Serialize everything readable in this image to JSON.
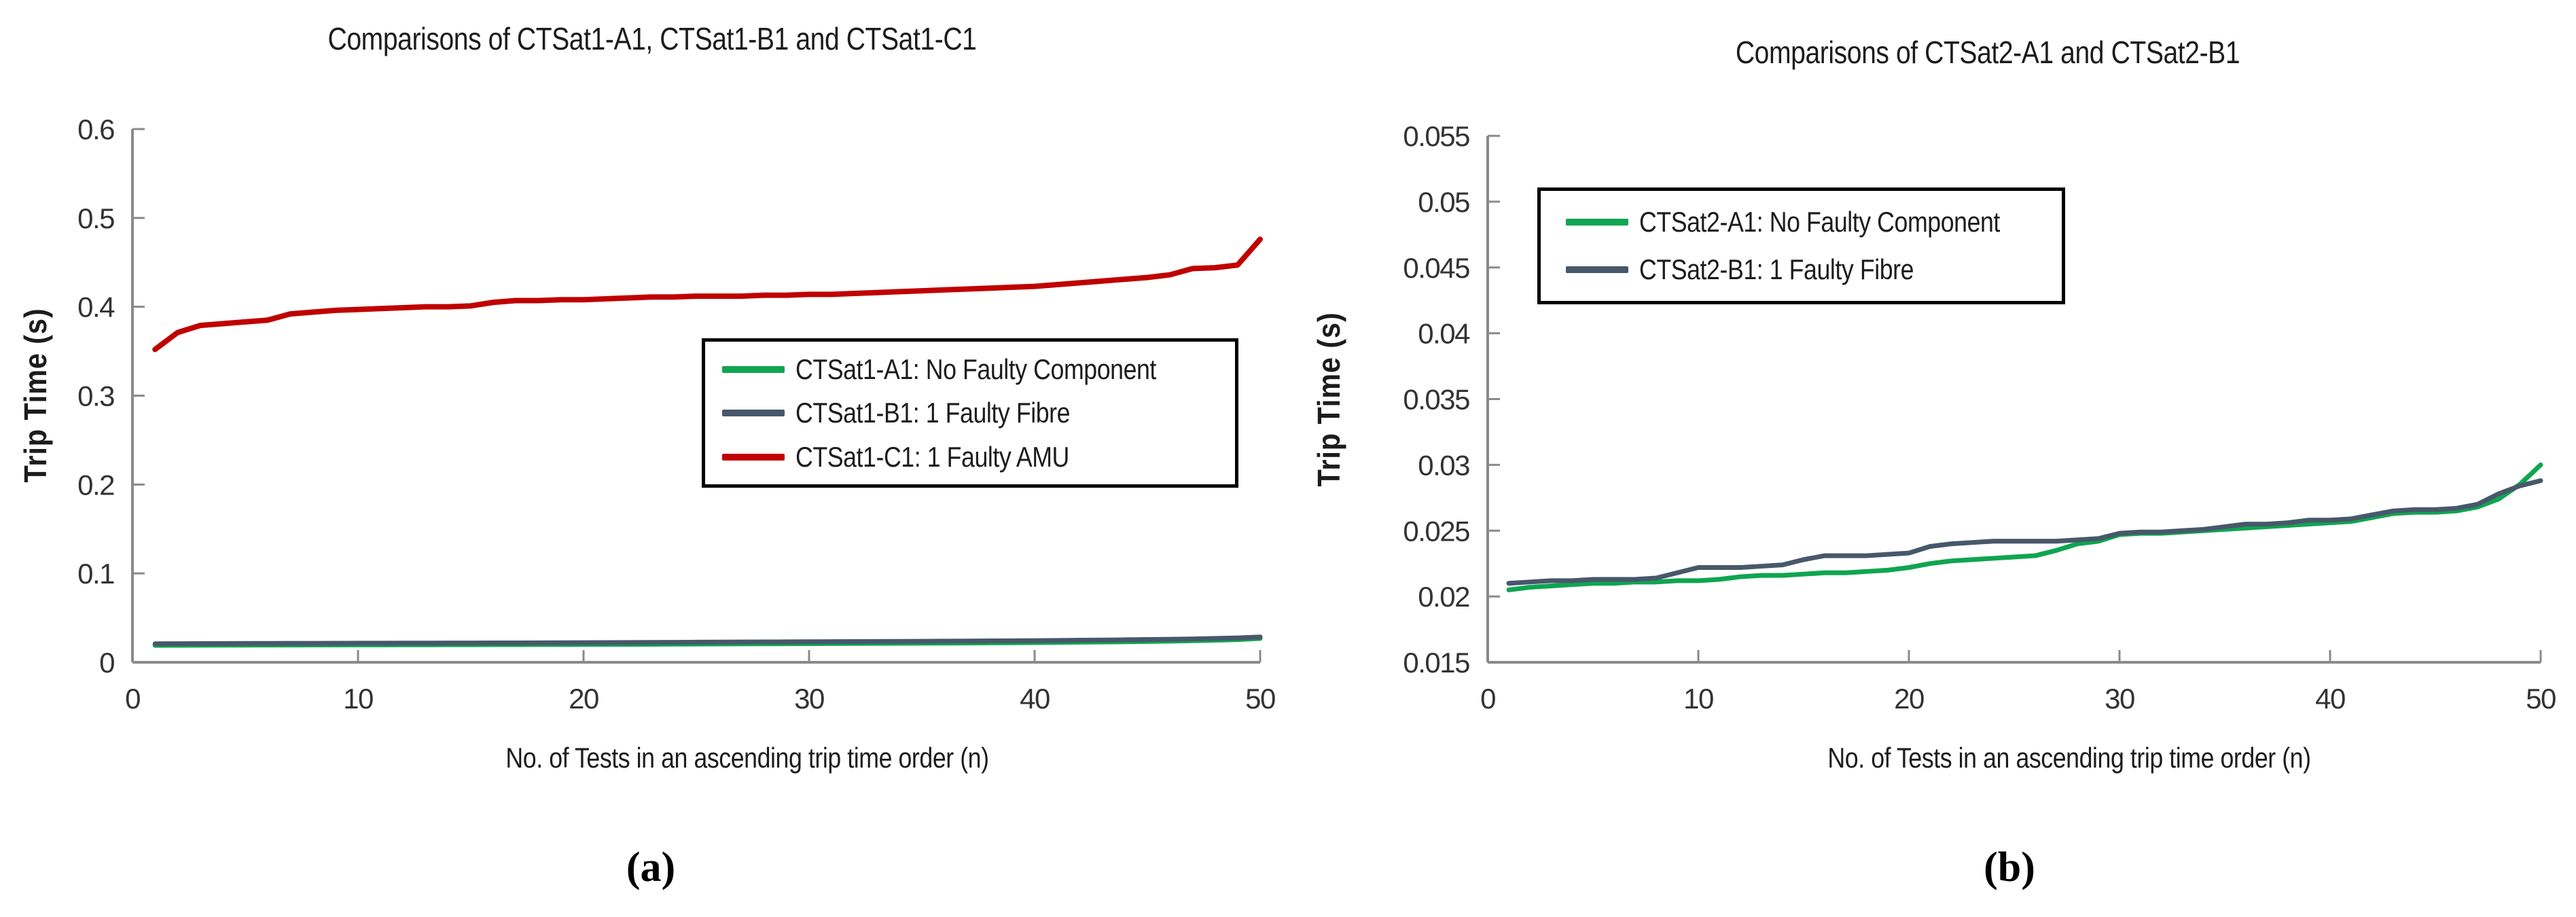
{
  "figure": {
    "background": "#ffffff",
    "axis_color": "#8a8a8a",
    "tick_text_color": "#333333",
    "captions": [
      "(a)",
      "(b)"
    ]
  },
  "chart_data": [
    {
      "type": "line",
      "title": "Comparisons of CTSat1-A1, CTSat1-B1 and CTSat1-C1",
      "xlabel": "No. of Tests in an ascending trip time order (n)",
      "ylabel": "Trip Time (s)",
      "caption": "(a)",
      "xlim": [
        0,
        50
      ],
      "ylim": [
        0,
        0.6
      ],
      "x_ticks": [
        0,
        10,
        20,
        30,
        40,
        50
      ],
      "x_tick_labels": [
        "0",
        "10",
        "20",
        "30",
        "40",
        "50"
      ],
      "y_ticks": [
        0,
        0.1,
        0.2,
        0.3,
        0.4,
        0.5,
        0.6
      ],
      "y_tick_labels": [
        "0",
        "0.1",
        "0.2",
        "0.3",
        "0.4",
        "0.5",
        "0.6"
      ],
      "grid": false,
      "legend_position": "inside center-right",
      "x": [
        1,
        2,
        3,
        4,
        5,
        6,
        7,
        8,
        9,
        10,
        11,
        12,
        13,
        14,
        15,
        16,
        17,
        18,
        19,
        20,
        21,
        22,
        23,
        24,
        25,
        26,
        27,
        28,
        29,
        30,
        31,
        32,
        33,
        34,
        35,
        36,
        37,
        38,
        39,
        40,
        41,
        42,
        43,
        44,
        45,
        46,
        47,
        48,
        49,
        50
      ],
      "series": [
        {
          "name": "CTSat1-A1: No Faulty Component",
          "color": "#0fa551",
          "values": [
            0.019,
            0.0191,
            0.0192,
            0.0193,
            0.0193,
            0.0194,
            0.0194,
            0.0195,
            0.0195,
            0.0196,
            0.0196,
            0.0197,
            0.0197,
            0.0198,
            0.0198,
            0.0199,
            0.0199,
            0.02,
            0.02,
            0.0201,
            0.0202,
            0.0202,
            0.0203,
            0.0204,
            0.0205,
            0.0206,
            0.0207,
            0.0208,
            0.0209,
            0.021,
            0.0211,
            0.0212,
            0.0213,
            0.0214,
            0.0215,
            0.0216,
            0.0217,
            0.0219,
            0.022,
            0.0222,
            0.0224,
            0.0226,
            0.0228,
            0.0231,
            0.0234,
            0.0238,
            0.0243,
            0.0248,
            0.0255,
            0.0268
          ]
        },
        {
          "name": "CTSat1-B1: 1 Faulty Fibre",
          "color": "#47586a",
          "values": [
            0.0208,
            0.0209,
            0.021,
            0.0211,
            0.0212,
            0.0212,
            0.0213,
            0.0213,
            0.0214,
            0.0215,
            0.0215,
            0.0216,
            0.0216,
            0.0217,
            0.0217,
            0.0218,
            0.0218,
            0.0219,
            0.022,
            0.0221,
            0.0222,
            0.0223,
            0.0224,
            0.0225,
            0.0226,
            0.0227,
            0.0228,
            0.0229,
            0.023,
            0.0231,
            0.0232,
            0.0233,
            0.0234,
            0.0235,
            0.0236,
            0.0238,
            0.0239,
            0.0241,
            0.0242,
            0.0244,
            0.0246,
            0.0248,
            0.025,
            0.0253,
            0.0256,
            0.0259,
            0.0263,
            0.0268,
            0.0274,
            0.0285
          ]
        },
        {
          "name": "CTSat1-C1: 1 Faulty AMU",
          "color": "#c00000",
          "values": [
            0.352,
            0.371,
            0.379,
            0.381,
            0.383,
            0.385,
            0.392,
            0.394,
            0.396,
            0.397,
            0.398,
            0.399,
            0.4,
            0.4,
            0.401,
            0.405,
            0.407,
            0.407,
            0.408,
            0.408,
            0.409,
            0.41,
            0.411,
            0.411,
            0.412,
            0.412,
            0.412,
            0.413,
            0.413,
            0.414,
            0.414,
            0.415,
            0.416,
            0.417,
            0.418,
            0.419,
            0.42,
            0.421,
            0.422,
            0.423,
            0.425,
            0.427,
            0.429,
            0.431,
            0.433,
            0.436,
            0.443,
            0.444,
            0.447,
            0.476
          ]
        }
      ]
    },
    {
      "type": "line",
      "title": "Comparisons of CTSat2-A1 and CTSat2-B1",
      "xlabel": "No. of Tests in an ascending trip time order (n)",
      "ylabel": "Trip Time (s)",
      "caption": "(b)",
      "xlim": [
        0,
        50
      ],
      "ylim": [
        0.015,
        0.055
      ],
      "x_ticks": [
        0,
        10,
        20,
        30,
        40,
        50
      ],
      "x_tick_labels": [
        "0",
        "10",
        "20",
        "30",
        "40",
        "50"
      ],
      "y_ticks": [
        0.015,
        0.02,
        0.025,
        0.03,
        0.035,
        0.04,
        0.045,
        0.05,
        0.055
      ],
      "y_tick_labels": [
        "0.015",
        "0.02",
        "0.025",
        "0.03",
        "0.035",
        "0.04",
        "0.045",
        "0.05",
        "0.055"
      ],
      "grid": false,
      "legend_position": "inside top-left",
      "x": [
        1,
        2,
        3,
        4,
        5,
        6,
        7,
        8,
        9,
        10,
        11,
        12,
        13,
        14,
        15,
        16,
        17,
        18,
        19,
        20,
        21,
        22,
        23,
        24,
        25,
        26,
        27,
        28,
        29,
        30,
        31,
        32,
        33,
        34,
        35,
        36,
        37,
        38,
        39,
        40,
        41,
        42,
        43,
        44,
        45,
        46,
        47,
        48,
        49,
        50
      ],
      "series": [
        {
          "name": "CTSat2-A1: No Faulty Component",
          "color": "#0fa551",
          "values": [
            0.0205,
            0.0207,
            0.0208,
            0.0209,
            0.021,
            0.021,
            0.0211,
            0.0211,
            0.0212,
            0.0212,
            0.0213,
            0.0215,
            0.0216,
            0.0216,
            0.0217,
            0.0218,
            0.0218,
            0.0219,
            0.022,
            0.0222,
            0.0225,
            0.0227,
            0.0228,
            0.0229,
            0.023,
            0.0231,
            0.0235,
            0.024,
            0.0242,
            0.0247,
            0.0248,
            0.0248,
            0.0249,
            0.025,
            0.0251,
            0.0252,
            0.0253,
            0.0254,
            0.0255,
            0.0256,
            0.0257,
            0.026,
            0.0263,
            0.0264,
            0.0264,
            0.0265,
            0.0268,
            0.0274,
            0.0285,
            0.03
          ]
        },
        {
          "name": "CTSat2-B1: 1 Faulty Fibre",
          "color": "#47586a",
          "values": [
            0.021,
            0.0211,
            0.0212,
            0.0212,
            0.0213,
            0.0213,
            0.0213,
            0.0214,
            0.0218,
            0.0222,
            0.0222,
            0.0222,
            0.0223,
            0.0224,
            0.0228,
            0.0231,
            0.0231,
            0.0231,
            0.0232,
            0.0233,
            0.0238,
            0.024,
            0.0241,
            0.0242,
            0.0242,
            0.0242,
            0.0242,
            0.0243,
            0.0244,
            0.0248,
            0.0249,
            0.0249,
            0.025,
            0.0251,
            0.0253,
            0.0255,
            0.0255,
            0.0256,
            0.0258,
            0.0258,
            0.0259,
            0.0262,
            0.0265,
            0.0266,
            0.0266,
            0.0267,
            0.027,
            0.0278,
            0.0284,
            0.0288
          ]
        }
      ]
    }
  ]
}
